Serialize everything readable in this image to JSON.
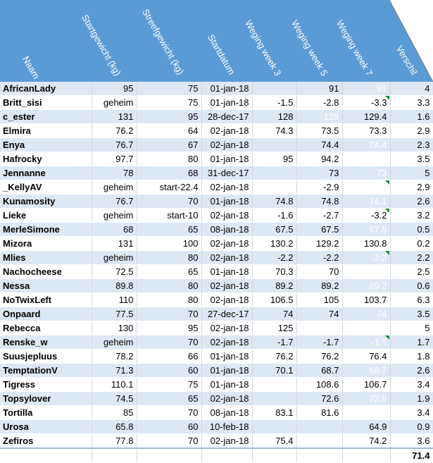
{
  "headers": [
    "Naam",
    "Startgewicht (kg)",
    "Streefgewicht (kg)",
    "Startdatum",
    "Weging week 3",
    "Weging week 5",
    "Weging week 7",
    "Verschil"
  ],
  "rows": [
    {
      "naam": "AfricanLady",
      "start": "95",
      "streef": "75",
      "datum": "01-jan-18",
      "w3": "",
      "w5": "91",
      "w7": "91",
      "verschil": "4",
      "flag7": false
    },
    {
      "naam": "Britt_sisi",
      "start": "geheim",
      "streef": "75",
      "datum": "01-jan-18",
      "w3": "-1.5",
      "w5": "-2.8",
      "w7": "-3.3",
      "verschil": "3.3",
      "flag7": true
    },
    {
      "naam": "c_ester",
      "start": "131",
      "streef": "95",
      "datum": "28-dec-17",
      "w3": "128",
      "w5": "128",
      "w7": "129.4",
      "verschil": "1.6",
      "flag7": false
    },
    {
      "naam": "Elmira",
      "start": "76.2",
      "streef": "64",
      "datum": "02-jan-18",
      "w3": "74.3",
      "w5": "73.5",
      "w7": "73.3",
      "verschil": "2.9",
      "flag7": false
    },
    {
      "naam": "Enya",
      "start": "76.7",
      "streef": "67",
      "datum": "02-jan-18",
      "w3": "",
      "w5": "74.4",
      "w7": "74.4",
      "verschil": "2.3",
      "flag7": false
    },
    {
      "naam": "Hafrocky",
      "start": "97.7",
      "streef": "80",
      "datum": "01-jan-18",
      "w3": "95",
      "w5": "94.2",
      "w7": "",
      "verschil": "3.5",
      "flag7": false
    },
    {
      "naam": "Jennanne",
      "start": "78",
      "streef": "68",
      "datum": "31-dec-17",
      "w3": "",
      "w5": "73",
      "w7": "73",
      "verschil": "5",
      "flag7": false
    },
    {
      "naam": "_KellyAV",
      "start": "geheim",
      "streef": "start-22.4",
      "datum": "02-jan-18",
      "w3": "",
      "w5": "-2.9",
      "w7": "",
      "verschil": "2.9",
      "flag7": true
    },
    {
      "naam": "Kunamosity",
      "start": "76.7",
      "streef": "70",
      "datum": "01-jan-18",
      "w3": "74.8",
      "w5": "74.8",
      "w7": "74.1",
      "verschil": "2.6",
      "flag7": false
    },
    {
      "naam": "Lieke",
      "start": "geheim",
      "streef": "start-10",
      "datum": "02-jan-18",
      "w3": "-1.6",
      "w5": "-2.7",
      "w7": "-3.2",
      "verschil": "3.2",
      "flag7": true
    },
    {
      "naam": "MerleSimone",
      "start": "68",
      "streef": "65",
      "datum": "08-jan-18",
      "w3": "67.5",
      "w5": "67.5",
      "w7": "67.5",
      "verschil": "0.5",
      "flag7": false
    },
    {
      "naam": "Mizora",
      "start": "131",
      "streef": "100",
      "datum": "02-jan-18",
      "w3": "130.2",
      "w5": "129.2",
      "w7": "130.8",
      "verschil": "0.2",
      "flag7": false
    },
    {
      "naam": "Mlies",
      "start": "geheim",
      "streef": "80",
      "datum": "02-jan-18",
      "w3": "-2.2",
      "w5": "-2.2",
      "w7": "-2.2",
      "verschil": "2.2",
      "flag7": true
    },
    {
      "naam": "Nachocheese",
      "start": "72.5",
      "streef": "65",
      "datum": "01-jan-18",
      "w3": "70.3",
      "w5": "70",
      "w7": "",
      "verschil": "2.5",
      "flag7": false
    },
    {
      "naam": "Nessa",
      "start": "89.8",
      "streef": "80",
      "datum": "02-jan-18",
      "w3": "89.2",
      "w5": "89.2",
      "w7": "89.2",
      "verschil": "0.6",
      "flag7": false
    },
    {
      "naam": "NoTwixLeft",
      "start": "110",
      "streef": "80",
      "datum": "02-jan-18",
      "w3": "106.5",
      "w5": "105",
      "w7": "103.7",
      "verschil": "6.3",
      "flag7": false
    },
    {
      "naam": "Onpaard",
      "start": "77.5",
      "streef": "70",
      "datum": "27-dec-17",
      "w3": "74",
      "w5": "74",
      "w7": "74",
      "verschil": "3.5",
      "flag7": false
    },
    {
      "naam": "Rebecca",
      "start": "130",
      "streef": "95",
      "datum": "02-jan-18",
      "w3": "125",
      "w5": "",
      "w7": "",
      "verschil": "5",
      "flag7": false
    },
    {
      "naam": "Renske_w",
      "start": "geheim",
      "streef": "70",
      "datum": "02-jan-18",
      "w3": "-1.7",
      "w5": "-1.7",
      "w7": "-1.7",
      "verschil": "1.7",
      "flag7": true
    },
    {
      "naam": "Suusjepluus",
      "start": "78.2",
      "streef": "66",
      "datum": "01-jan-18",
      "w3": "76.2",
      "w5": "76.2",
      "w7": "76.4",
      "verschil": "1.8",
      "flag7": false
    },
    {
      "naam": "TemptationV",
      "start": "71.3",
      "streef": "60",
      "datum": "01-jan-18",
      "w3": "70.1",
      "w5": "68.7",
      "w7": "68.7",
      "verschil": "2.6",
      "flag7": false
    },
    {
      "naam": "Tigress",
      "start": "110.1",
      "streef": "75",
      "datum": "01-jan-18",
      "w3": "",
      "w5": "108.6",
      "w7": "106.7",
      "verschil": "3.4",
      "flag7": false
    },
    {
      "naam": "Topsylover",
      "start": "74.5",
      "streef": "65",
      "datum": "02-jan-18",
      "w3": "",
      "w5": "72.6",
      "w7": "72.6",
      "verschil": "1.9",
      "flag7": false
    },
    {
      "naam": "Tortilla",
      "start": "85",
      "streef": "70",
      "datum": "08-jan-18",
      "w3": "83.1",
      "w5": "81.6",
      "w7": "",
      "verschil": "3.4",
      "flag7": false
    },
    {
      "naam": "Urosa",
      "start": "65.8",
      "streef": "60",
      "datum": "10-feb-18",
      "w3": "",
      "w5": "",
      "w7": "64.9",
      "verschil": "0.9",
      "flag7": false
    },
    {
      "naam": "Zefiros",
      "start": "77.8",
      "streef": "70",
      "datum": "02-jan-18",
      "w3": "75.4",
      "w5": "",
      "w7": "74.2",
      "verschil": "3.6",
      "flag7": false
    }
  ],
  "white": {
    "w5": [
      2
    ],
    "w7": [
      0,
      4,
      6,
      8,
      10,
      12,
      14,
      16,
      18,
      20,
      22
    ]
  },
  "total": "71.4",
  "colors": {
    "header": "#5b9bd5",
    "band": "#dde8f5",
    "flag": "#1f8a3a"
  }
}
